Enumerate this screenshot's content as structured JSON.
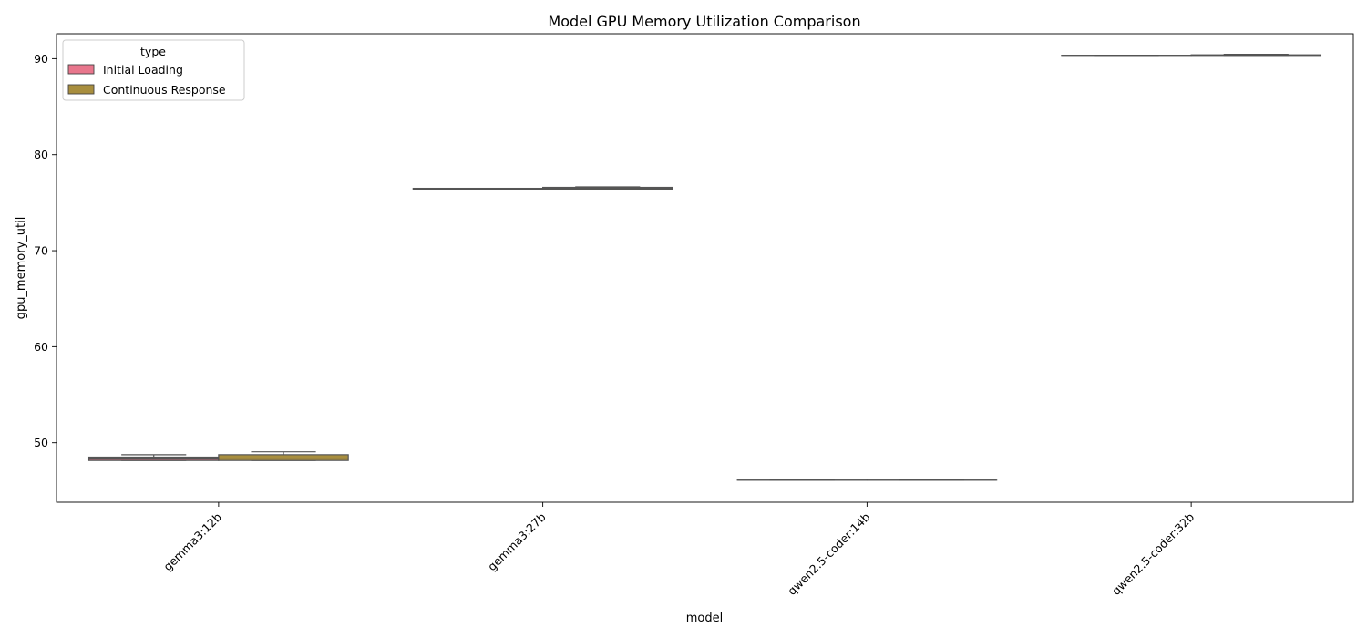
{
  "chart_data": {
    "type": "box",
    "title": "Model GPU Memory Utilization Comparison",
    "xlabel": "model",
    "ylabel": "gpu_memory_util",
    "categories": [
      "gemma3:12b",
      "gemma3:27b",
      "qwen2.5-coder:14b",
      "qwen2.5-coder:32b"
    ],
    "ylim": [
      43.8,
      92.6
    ],
    "yticks": [
      50,
      60,
      70,
      80,
      90
    ],
    "grid": false,
    "legend": {
      "title": "type",
      "placement": "top-left",
      "entries": [
        "Initial Loading",
        "Continuous Response"
      ]
    },
    "series": [
      {
        "name": "Initial Loading",
        "color": "#e8768c",
        "boxes": [
          {
            "whislo": 48.15,
            "q1": 48.15,
            "med": 48.3,
            "q3": 48.5,
            "whishi": 48.75
          },
          {
            "whislo": 76.4,
            "q1": 76.4,
            "med": 76.45,
            "q3": 76.5,
            "whishi": 76.5
          },
          {
            "whislo": 46.1,
            "q1": 46.1,
            "med": 46.1,
            "q3": 46.1,
            "whishi": 46.1
          },
          {
            "whislo": 90.35,
            "q1": 90.35,
            "med": 90.35,
            "q3": 90.35,
            "whishi": 90.35
          }
        ]
      },
      {
        "name": "Continuous Response",
        "color": "#a88e3e",
        "boxes": [
          {
            "whislo": 48.15,
            "q1": 48.15,
            "med": 48.4,
            "q3": 48.75,
            "whishi": 49.05
          },
          {
            "whislo": 76.4,
            "q1": 76.4,
            "med": 76.5,
            "q3": 76.6,
            "whishi": 76.65
          },
          {
            "whislo": 46.1,
            "q1": 46.1,
            "med": 46.1,
            "q3": 46.1,
            "whishi": 46.1
          },
          {
            "whislo": 90.35,
            "q1": 90.35,
            "med": 90.35,
            "q3": 90.4,
            "whishi": 90.45
          }
        ]
      }
    ]
  }
}
